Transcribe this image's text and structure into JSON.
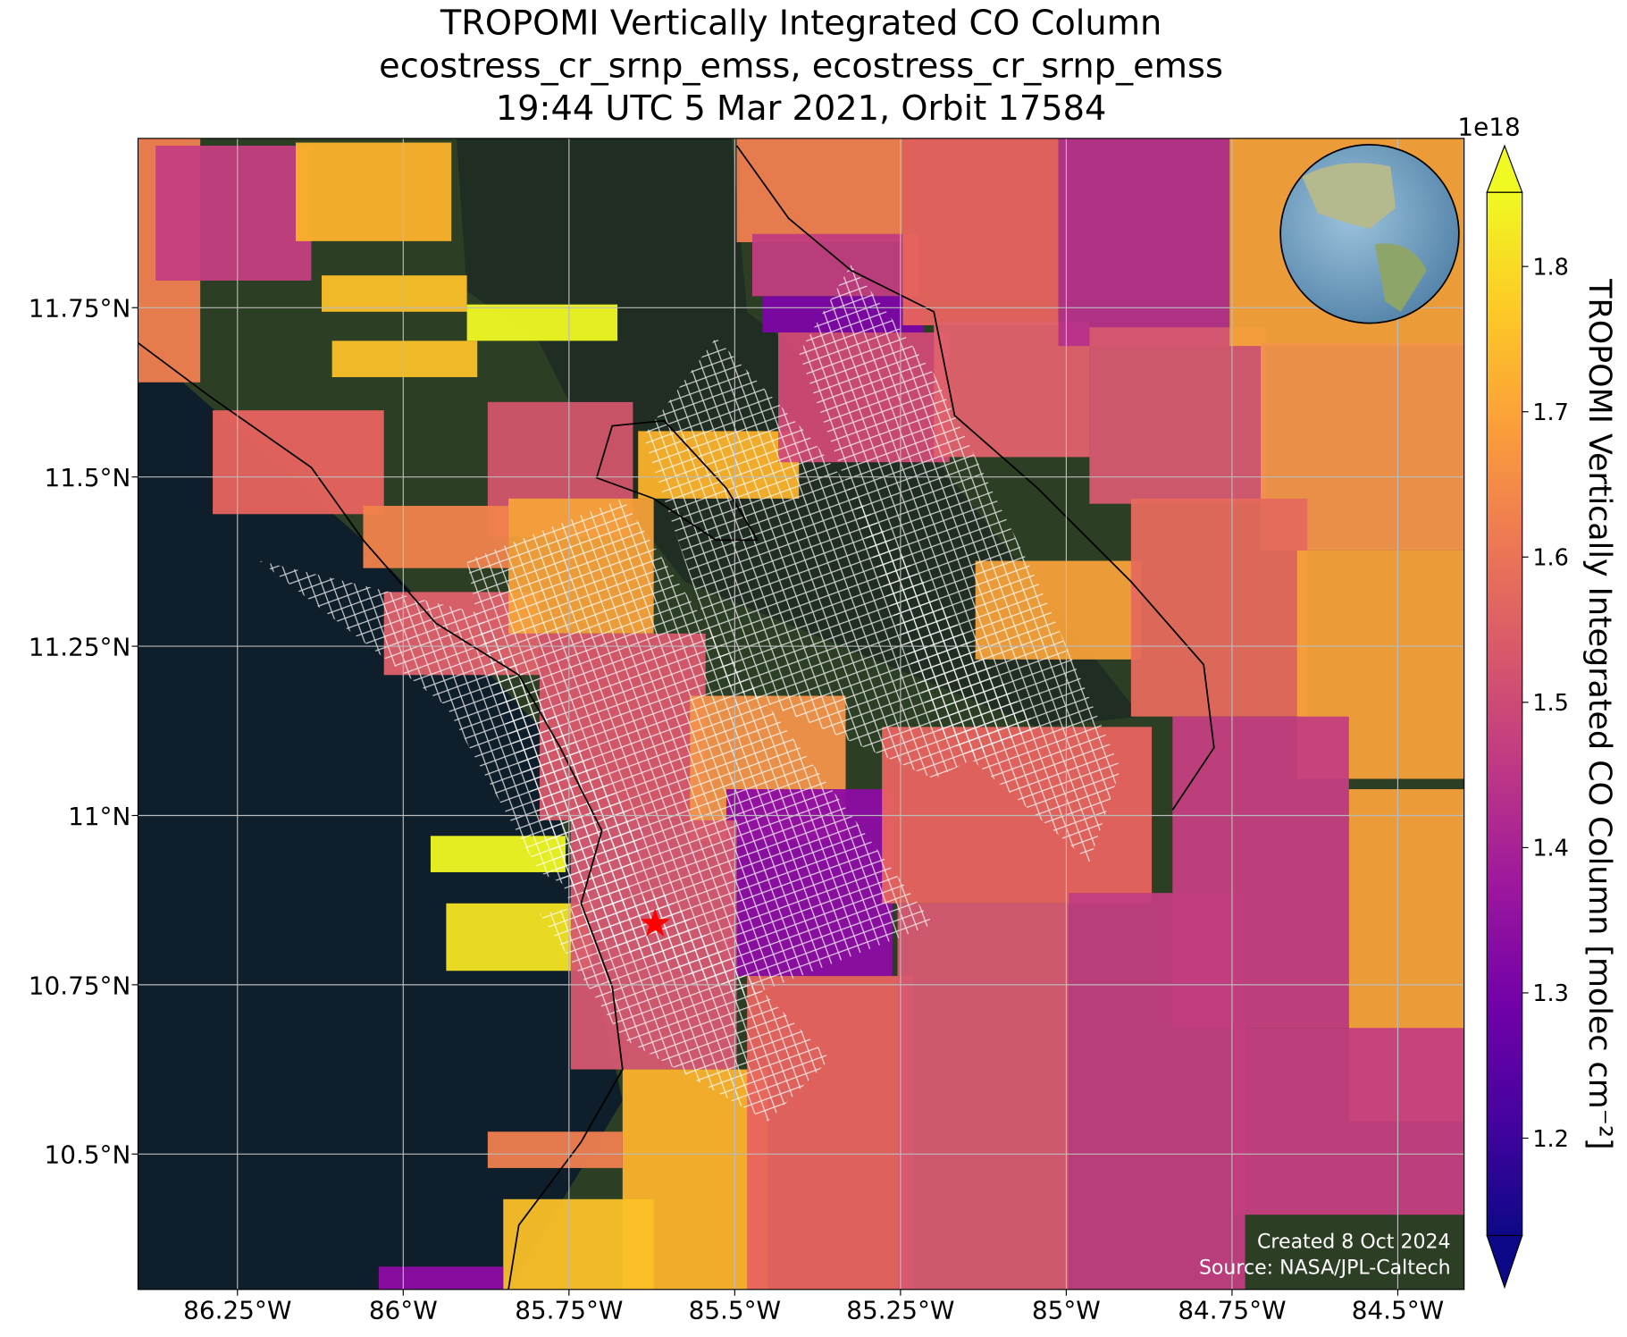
{
  "chart_data": {
    "type": "map",
    "title": [
      "TROPOMI Vertically Integrated CO Column",
      "ecostress_cr_srnp_emss, ecostress_cr_srnp_emss",
      "19:44 UTC 5 Mar 2021, Orbit 17584"
    ],
    "xlim": [
      -86.4,
      -84.4
    ],
    "ylim": [
      10.3,
      12.0
    ],
    "xticks": [
      {
        "value": -86.25,
        "label": "86.25°W"
      },
      {
        "value": -86,
        "label": "86°W"
      },
      {
        "value": -85.75,
        "label": "85.75°W"
      },
      {
        "value": -85.5,
        "label": "85.5°W"
      },
      {
        "value": -85.25,
        "label": "85.25°W"
      },
      {
        "value": -85,
        "label": "85°W"
      },
      {
        "value": -84.75,
        "label": "84.75°W"
      },
      {
        "value": -84.5,
        "label": "84.5°W"
      }
    ],
    "yticks": [
      {
        "value": 10.5,
        "label": "10.5°N"
      },
      {
        "value": 10.75,
        "label": "10.75°N"
      },
      {
        "value": 11,
        "label": "11°N"
      },
      {
        "value": 11.25,
        "label": "11.25°N"
      },
      {
        "value": 11.5,
        "label": "11.5°N"
      },
      {
        "value": 11.75,
        "label": "11.75°N"
      }
    ],
    "grid": true,
    "marker": {
      "x": -85.62,
      "y": 10.84,
      "color": "#ff0000"
    },
    "colorbar": {
      "label": "TROPOMI Vertically Integrated CO Column [molec cm⁻²]",
      "offset_label": "1e18",
      "colormap": "plasma",
      "clim": [
        1.133,
        1.851
      ],
      "ticks": [
        1.2,
        1.3,
        1.4,
        1.5,
        1.6,
        1.7,
        1.8
      ]
    },
    "footer": [
      "Created 8 Oct 2024",
      "Source: NASA/JPL-Caltech"
    ]
  }
}
